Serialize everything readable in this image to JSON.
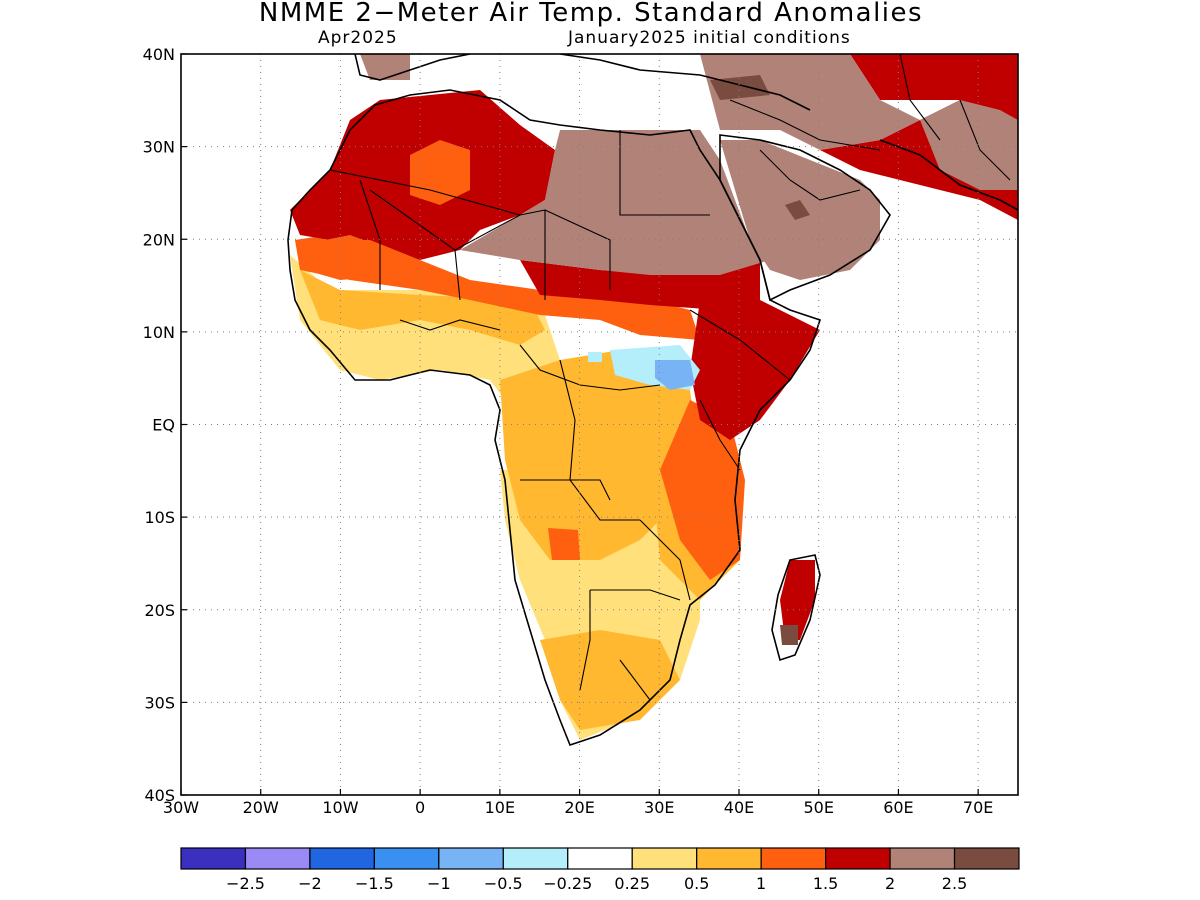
{
  "title": "NMME 2−Meter Air Temp. Standard Anomalies",
  "subtitle_left": "Apr2025",
  "subtitle_right": "January2025 initial conditions",
  "map": {
    "lon_range": [
      -30,
      75
    ],
    "lat_range": [
      -40,
      40
    ],
    "lon_ticks": [
      {
        "value": -30,
        "label": "30W"
      },
      {
        "value": -20,
        "label": "20W"
      },
      {
        "value": -10,
        "label": "10W"
      },
      {
        "value": 0,
        "label": "0"
      },
      {
        "value": 10,
        "label": "10E"
      },
      {
        "value": 20,
        "label": "20E"
      },
      {
        "value": 30,
        "label": "30E"
      },
      {
        "value": 40,
        "label": "40E"
      },
      {
        "value": 50,
        "label": "50E"
      },
      {
        "value": 60,
        "label": "60E"
      },
      {
        "value": 70,
        "label": "70E"
      }
    ],
    "lat_ticks": [
      {
        "value": 40,
        "label": "40N"
      },
      {
        "value": 30,
        "label": "30N"
      },
      {
        "value": 20,
        "label": "20N"
      },
      {
        "value": 10,
        "label": "10N"
      },
      {
        "value": 0,
        "label": "EQ"
      },
      {
        "value": -10,
        "label": "10S"
      },
      {
        "value": -20,
        "label": "20S"
      },
      {
        "value": -30,
        "label": "30S"
      },
      {
        "value": -40,
        "label": "40S"
      }
    ],
    "grid": true
  },
  "legend": {
    "colors": [
      "#3b2fbf",
      "#9a8af5",
      "#2066e0",
      "#3a90f0",
      "#78b4f5",
      "#b4eefa",
      "#ffffff",
      "#ffe07a",
      "#ffb830",
      "#ff6010",
      "#c00000",
      "#b08278",
      "#7a4c40"
    ],
    "labels": [
      "−2.5",
      "−2",
      "−1.5",
      "−1",
      "−0.5",
      "−0.25",
      "0.25",
      "0.5",
      "1",
      "1.5",
      "2",
      "2.5"
    ]
  }
}
